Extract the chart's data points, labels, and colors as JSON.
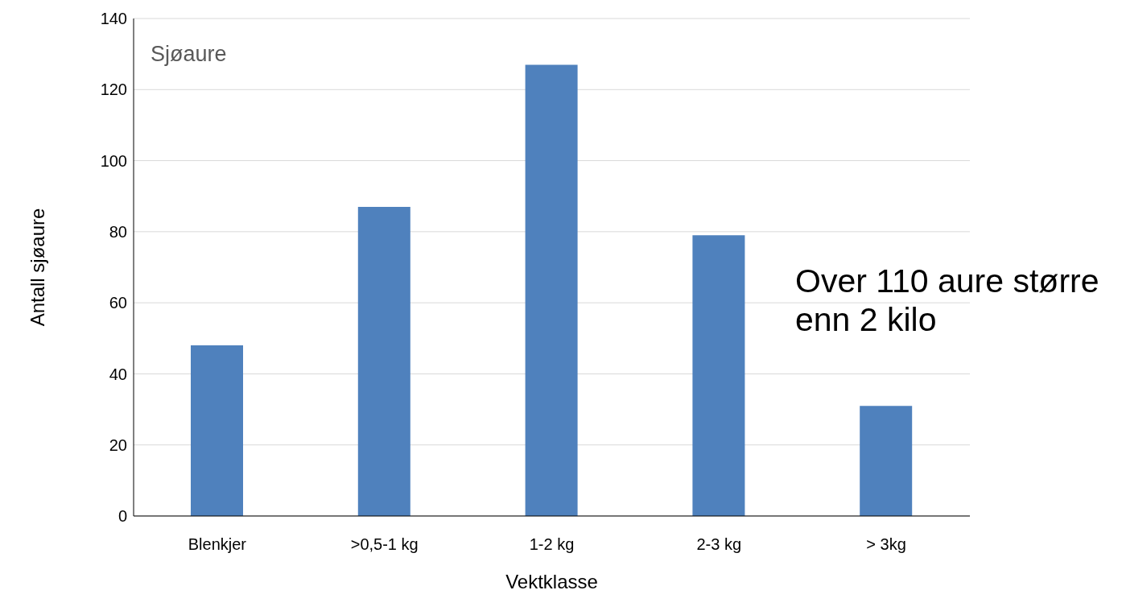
{
  "chart_data": {
    "type": "bar",
    "title": "Sjøaure",
    "xlabel": "Vektklasse",
    "ylabel": "Antall sjøaure",
    "categories": [
      "Blenkjer",
      ">0,5-1 kg",
      "1-2 kg",
      "2-3 kg",
      "> 3kg"
    ],
    "values": [
      48,
      87,
      127,
      79,
      31
    ],
    "color": "#4f81bd",
    "ylim": [
      0,
      140
    ],
    "yticks": [
      0,
      20,
      40,
      60,
      80,
      100,
      120,
      140
    ],
    "grid": "y",
    "annotations": [
      "Over 110 aure større enn 2 kilo"
    ]
  }
}
